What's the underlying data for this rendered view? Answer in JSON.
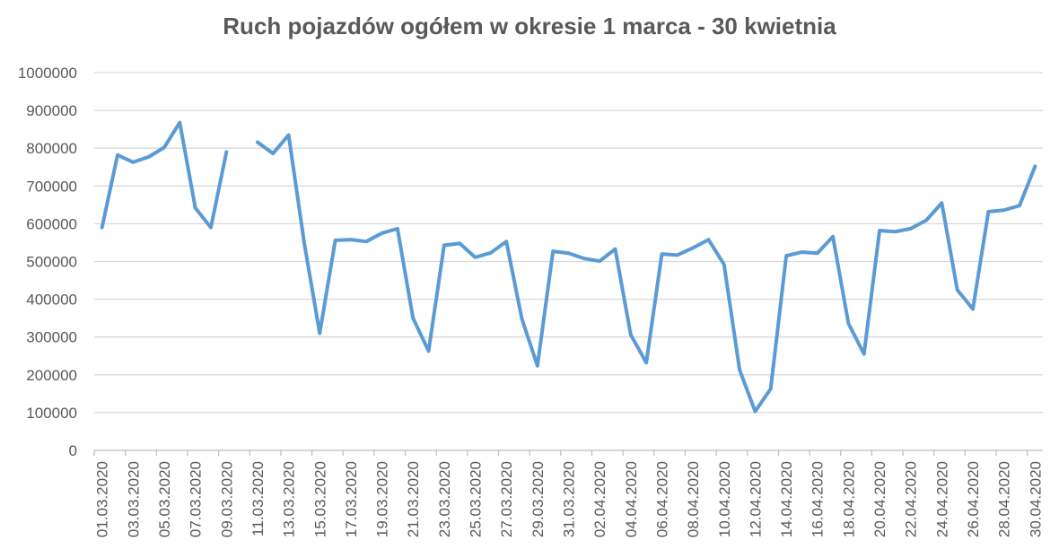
{
  "chart_data": {
    "type": "line",
    "title": "Ruch pojazdów ogółem w okresie 1 marca - 30 kwietnia",
    "xlabel": "",
    "ylabel": "",
    "ylim": [
      0,
      1000000
    ],
    "yticks": [
      "0",
      "100000",
      "200000",
      "300000",
      "400000",
      "500000",
      "600000",
      "700000",
      "800000",
      "900000",
      "1000000"
    ],
    "grid": true,
    "legend": "none",
    "line_color": "#5B9BD5",
    "categories": [
      "01.03.2020",
      "02.03.2020",
      "03.03.2020",
      "04.03.2020",
      "05.03.2020",
      "06.03.2020",
      "07.03.2020",
      "08.03.2020",
      "09.03.2020",
      "10.03.2020",
      "11.03.2020",
      "12.03.2020",
      "13.03.2020",
      "14.03.2020",
      "15.03.2020",
      "16.03.2020",
      "17.03.2020",
      "18.03.2020",
      "19.03.2020",
      "20.03.2020",
      "21.03.2020",
      "22.03.2020",
      "23.03.2020",
      "24.03.2020",
      "25.03.2020",
      "26.03.2020",
      "27.03.2020",
      "28.03.2020",
      "29.03.2020",
      "30.03.2020",
      "31.03.2020",
      "01.04.2020",
      "02.04.2020",
      "03.04.2020",
      "04.04.2020",
      "05.04.2020",
      "06.04.2020",
      "07.04.2020",
      "08.04.2020",
      "09.04.2020",
      "10.04.2020",
      "11.04.2020",
      "12.04.2020",
      "13.04.2020",
      "14.04.2020",
      "15.04.2020",
      "16.04.2020",
      "17.04.2020",
      "18.04.2020",
      "19.04.2020",
      "20.04.2020",
      "21.04.2020",
      "22.04.2020",
      "23.04.2020",
      "24.04.2020",
      "25.04.2020",
      "26.04.2020",
      "27.04.2020",
      "28.04.2020",
      "29.04.2020",
      "30.04.2020"
    ],
    "x_tick_labels": [
      "01.03.2020",
      "03.03.2020",
      "05.03.2020",
      "07.03.2020",
      "09.03.2020",
      "11.03.2020",
      "13.03.2020",
      "15.03.2020",
      "17.03.2020",
      "19.03.2020",
      "21.03.2020",
      "23.03.2020",
      "25.03.2020",
      "27.03.2020",
      "29.03.2020",
      "31.03.2020",
      "02.04.2020",
      "04.04.2020",
      "06.04.2020",
      "08.04.2020",
      "10.04.2020",
      "12.04.2020",
      "14.04.2020",
      "16.04.2020",
      "18.04.2020",
      "20.04.2020",
      "22.04.2020",
      "24.04.2020",
      "26.04.2020",
      "28.04.2020",
      "30.04.2020"
    ],
    "series": [
      {
        "values": [
          590000,
          782000,
          763000,
          777000,
          802000,
          868000,
          642000,
          590000,
          790000,
          null,
          816000,
          786000,
          835000,
          550000,
          310000,
          556000,
          558000,
          553000,
          575000,
          587000,
          350000,
          263000,
          543000,
          548000,
          511000,
          523000,
          553000,
          348000,
          224000,
          527000,
          522000,
          508000,
          501000,
          533000,
          306000,
          232000,
          520000,
          517000,
          536000,
          558000,
          492000,
          213000,
          103000,
          163000,
          515000,
          525000,
          522000,
          566000,
          336000,
          255000,
          582000,
          579000,
          587000,
          609000,
          655000,
          425000,
          374000,
          632000,
          636000,
          648000,
          752000
        ]
      }
    ]
  }
}
